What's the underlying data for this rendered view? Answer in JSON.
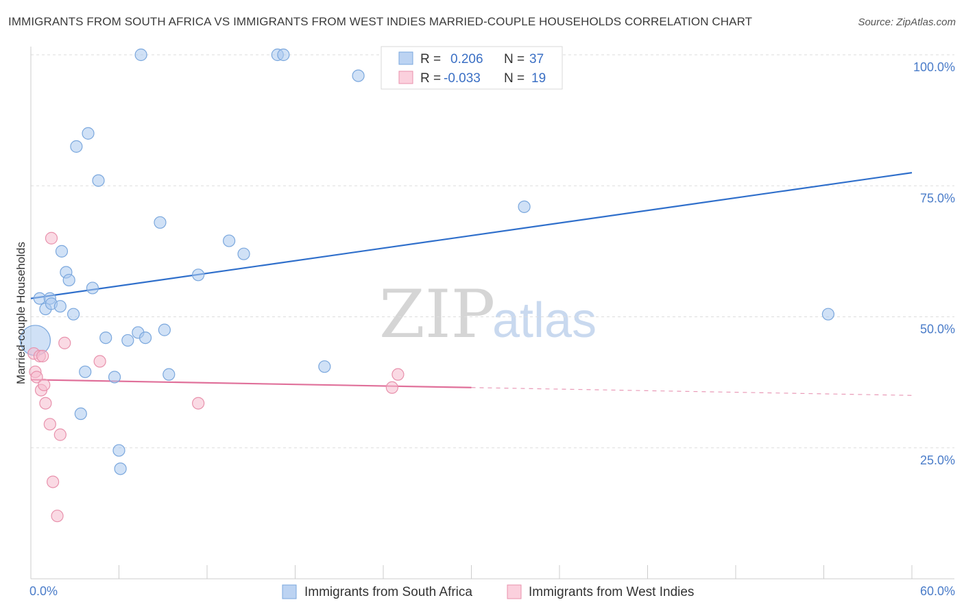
{
  "title": "IMMIGRANTS FROM SOUTH AFRICA VS IMMIGRANTS FROM WEST INDIES MARRIED-COUPLE HOUSEHOLDS CORRELATION CHART",
  "source": "Source: ZipAtlas.com",
  "watermark": {
    "zip": "ZIP",
    "atlas": "atlas"
  },
  "legend": {
    "r_label": "R =",
    "n_label": "N =",
    "series1": {
      "r": "0.206",
      "n": "37"
    },
    "series2": {
      "r": "-0.033",
      "n": "19"
    }
  },
  "chart_data": {
    "type": "scatter",
    "title": "IMMIGRANTS FROM SOUTH AFRICA VS IMMIGRANTS FROM WEST INDIES MARRIED-COUPLE HOUSEHOLDS CORRELATION CHART",
    "xlabel": "",
    "ylabel": "Married-couple Households",
    "xlim": [
      0,
      60
    ],
    "ylim": [
      0,
      105
    ],
    "x_tick_labels": [
      "0.0%",
      "60.0%"
    ],
    "y_ticks": [
      25,
      50,
      75,
      100
    ],
    "y_tick_labels": [
      "25.0%",
      "50.0%",
      "75.0%",
      "100.0%"
    ],
    "grid": true,
    "legend_position": "top-center",
    "series": [
      {
        "name": "Immigrants from South Africa",
        "color": "#a9c8ee",
        "stroke": "#7aa7dd",
        "trend_color": "#2f6fcb",
        "trend": {
          "x0": 0,
          "y0": 53.5,
          "x1": 60,
          "y1": 77.5
        },
        "points": [
          {
            "x": 0.3,
            "y": 45.5,
            "big": true
          },
          {
            "x": 0.6,
            "y": 53.5
          },
          {
            "x": 1.0,
            "y": 51.5
          },
          {
            "x": 1.3,
            "y": 53.5
          },
          {
            "x": 1.4,
            "y": 52.5
          },
          {
            "x": 2.0,
            "y": 52.0
          },
          {
            "x": 2.1,
            "y": 62.5
          },
          {
            "x": 2.4,
            "y": 58.5
          },
          {
            "x": 2.6,
            "y": 57.0
          },
          {
            "x": 2.9,
            "y": 50.5
          },
          {
            "x": 3.1,
            "y": 82.5
          },
          {
            "x": 3.4,
            "y": 31.5
          },
          {
            "x": 3.7,
            "y": 39.5
          },
          {
            "x": 3.9,
            "y": 85.0
          },
          {
            "x": 4.2,
            "y": 55.5
          },
          {
            "x": 4.6,
            "y": 76.0
          },
          {
            "x": 5.1,
            "y": 46.0
          },
          {
            "x": 5.7,
            "y": 38.5
          },
          {
            "x": 6.0,
            "y": 24.5
          },
          {
            "x": 6.1,
            "y": 21.0
          },
          {
            "x": 6.6,
            "y": 45.5
          },
          {
            "x": 7.3,
            "y": 47.0
          },
          {
            "x": 7.5,
            "y": 100.0
          },
          {
            "x": 7.8,
            "y": 46.0
          },
          {
            "x": 8.8,
            "y": 68.0
          },
          {
            "x": 9.1,
            "y": 47.5
          },
          {
            "x": 9.4,
            "y": 39.0
          },
          {
            "x": 11.4,
            "y": 58.0
          },
          {
            "x": 13.5,
            "y": 64.5
          },
          {
            "x": 14.5,
            "y": 62.0
          },
          {
            "x": 16.8,
            "y": 100.0
          },
          {
            "x": 17.2,
            "y": 100.0
          },
          {
            "x": 20.0,
            "y": 40.5
          },
          {
            "x": 22.3,
            "y": 96.0
          },
          {
            "x": 33.6,
            "y": 71.0
          },
          {
            "x": 54.3,
            "y": 50.5
          }
        ]
      },
      {
        "name": "Immigrants from West Indies",
        "color": "#f5bccd",
        "stroke": "#e891ac",
        "trend_color": "#e0709a",
        "trend": {
          "x0": 0,
          "y0": 38.0,
          "x1": 30,
          "y1": 36.5,
          "dash_to_x": 60,
          "dash_to_y": 35.0
        },
        "points": [
          {
            "x": 0.2,
            "y": 43.0
          },
          {
            "x": 0.3,
            "y": 39.5
          },
          {
            "x": 0.4,
            "y": 38.5
          },
          {
            "x": 0.6,
            "y": 42.5
          },
          {
            "x": 0.7,
            "y": 36.0
          },
          {
            "x": 0.8,
            "y": 42.5
          },
          {
            "x": 0.9,
            "y": 37.0
          },
          {
            "x": 1.0,
            "y": 33.5
          },
          {
            "x": 1.3,
            "y": 29.5
          },
          {
            "x": 1.4,
            "y": 65.0
          },
          {
            "x": 1.5,
            "y": 18.5
          },
          {
            "x": 1.8,
            "y": 12.0
          },
          {
            "x": 2.0,
            "y": 27.5
          },
          {
            "x": 2.3,
            "y": 45.0
          },
          {
            "x": 4.7,
            "y": 41.5
          },
          {
            "x": 11.4,
            "y": 33.5
          },
          {
            "x": 24.6,
            "y": 36.5
          },
          {
            "x": 25.0,
            "y": 39.0
          }
        ]
      }
    ]
  }
}
